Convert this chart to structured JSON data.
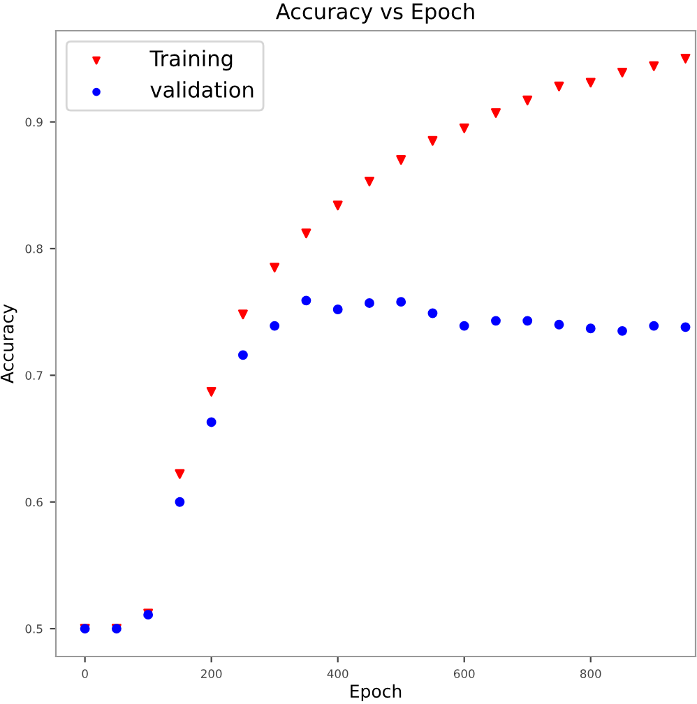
{
  "chart_data": {
    "type": "scatter",
    "title": "Accuracy vs Epoch",
    "xlabel": "Epoch",
    "ylabel": "Accuracy",
    "x": [
      0,
      50,
      100,
      150,
      200,
      250,
      300,
      350,
      400,
      450,
      500,
      550,
      600,
      650,
      700,
      750,
      800,
      850,
      900,
      950
    ],
    "series": [
      {
        "name": "Training",
        "color": "#ff0000",
        "marker": "triangle",
        "values": [
          0.5,
          0.5,
          0.512,
          0.622,
          0.687,
          0.748,
          0.785,
          0.812,
          0.834,
          0.853,
          0.87,
          0.885,
          0.895,
          0.907,
          0.917,
          0.928,
          0.931,
          0.939,
          0.944,
          0.95
        ]
      },
      {
        "name": "validation",
        "color": "#0000ff",
        "marker": "circle",
        "values": [
          0.5,
          0.5,
          0.511,
          0.6,
          0.663,
          0.716,
          0.739,
          0.759,
          0.752,
          0.757,
          0.758,
          0.749,
          0.739,
          0.743,
          0.743,
          0.74,
          0.737,
          0.735,
          0.739,
          0.738
        ]
      }
    ],
    "xlim": [
      -46,
      966
    ],
    "ylim": [
      0.478,
      0.972
    ],
    "xticks": [
      0,
      200,
      400,
      600,
      800
    ],
    "yticks": [
      0.5,
      0.6,
      0.7,
      0.8,
      0.9
    ],
    "legend": "top left",
    "grid": false
  }
}
